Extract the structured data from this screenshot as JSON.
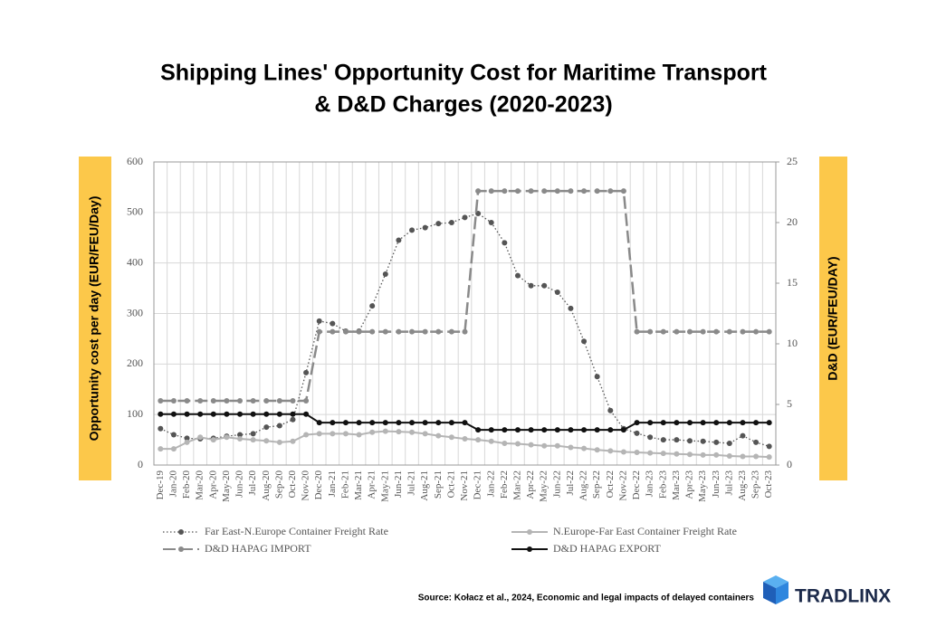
{
  "chart_data": {
    "type": "line",
    "title": "Shipping Lines' Opportunity Cost for Maritime Transport",
    "title_line2": "& D&D Charges (2020-2023)",
    "ylabel": "Opportunity cost per day (EUR/FEU/Day)",
    "y2label": "D&D (EUR/FEU/DAY)",
    "categories": [
      "Dec-19",
      "Jan-20",
      "Feb-20",
      "Mar-20",
      "Apr-20",
      "May-20",
      "Jun-20",
      "Jul-20",
      "Aug-20",
      "Sep-20",
      "Oct-20",
      "Nov-20",
      "Dec-20",
      "Jan-21",
      "Feb-21",
      "Mar-21",
      "Apr-21",
      "May-21",
      "Jun-21",
      "Jul-21",
      "Aug-21",
      "Sep-21",
      "Oct-21",
      "Nov-21",
      "Dec-21",
      "Jan-22",
      "Feb-22",
      "Mar-22",
      "Apr-22",
      "May-22",
      "Jun-22",
      "Jul-22",
      "Aug-22",
      "Sep-22",
      "Oct-22",
      "Nov-22",
      "Dec-22",
      "Jan-23",
      "Feb-23",
      "Mar-23",
      "Apr-23",
      "May-23",
      "Jun-23",
      "Jul-23",
      "Aug-23",
      "Sep-23",
      "Oct-23"
    ],
    "series": [
      {
        "name": "Far East-N.Europe Container Freight Rate",
        "color": "#555555",
        "line_style": "dotted",
        "values": [
          72,
          60,
          53,
          52,
          53,
          57,
          60,
          62,
          75,
          78,
          90,
          183,
          285,
          280,
          265,
          265,
          315,
          378,
          445,
          465,
          470,
          478,
          480,
          490,
          498,
          480,
          440,
          375,
          355,
          355,
          342,
          310,
          245,
          175,
          108,
          72,
          63,
          55,
          50,
          50,
          48,
          47,
          45,
          43,
          58,
          45,
          37
        ]
      },
      {
        "name": "N.Europe-Far East Container Freight Rate",
        "color": "#b5b5b5",
        "line_style": "solid",
        "values": [
          32,
          32,
          45,
          55,
          50,
          55,
          52,
          50,
          48,
          45,
          47,
          60,
          62,
          62,
          62,
          60,
          65,
          67,
          66,
          65,
          62,
          58,
          55,
          52,
          50,
          47,
          43,
          42,
          40,
          38,
          38,
          35,
          33,
          30,
          28,
          26,
          25,
          24,
          23,
          22,
          21,
          20,
          20,
          18,
          17,
          17,
          16
        ]
      },
      {
        "name": "D&D HAPAG IMPORT",
        "color": "#8a8a8a",
        "line_style": "dashed",
        "axis": "y2",
        "values": [
          5.3,
          5.3,
          5.3,
          5.3,
          5.3,
          5.3,
          5.3,
          5.3,
          5.3,
          5.3,
          5.3,
          5.3,
          11,
          11,
          11,
          11,
          11,
          11,
          11,
          11,
          11,
          11,
          11,
          11,
          22.6,
          22.6,
          22.6,
          22.6,
          22.6,
          22.6,
          22.6,
          22.6,
          22.6,
          22.6,
          22.6,
          22.6,
          11,
          11,
          11,
          11,
          11,
          11,
          11,
          11,
          11,
          11,
          11
        ]
      },
      {
        "name": "D&D HAPAG EXPORT",
        "color": "#111111",
        "line_style": "solid",
        "axis": "y2",
        "values": [
          4.2,
          4.2,
          4.2,
          4.2,
          4.2,
          4.2,
          4.2,
          4.2,
          4.2,
          4.2,
          4.2,
          4.2,
          3.5,
          3.5,
          3.5,
          3.5,
          3.5,
          3.5,
          3.5,
          3.5,
          3.5,
          3.5,
          3.5,
          3.5,
          2.9,
          2.9,
          2.9,
          2.9,
          2.9,
          2.9,
          2.9,
          2.9,
          2.9,
          2.9,
          2.9,
          2.9,
          3.5,
          3.5,
          3.5,
          3.5,
          3.5,
          3.5,
          3.5,
          3.5,
          3.5,
          3.5,
          3.5
        ]
      }
    ],
    "ylim": [
      0,
      600
    ],
    "yticks": [
      0,
      100,
      200,
      300,
      400,
      500,
      600
    ],
    "y2lim": [
      0,
      25
    ],
    "y2ticks": [
      0,
      5,
      10,
      15,
      20,
      25
    ],
    "grid": true,
    "source": "Source: Kołacz et al., 2024, Economic and legal impacts of delayed containers",
    "brand": "TRADLINX"
  }
}
